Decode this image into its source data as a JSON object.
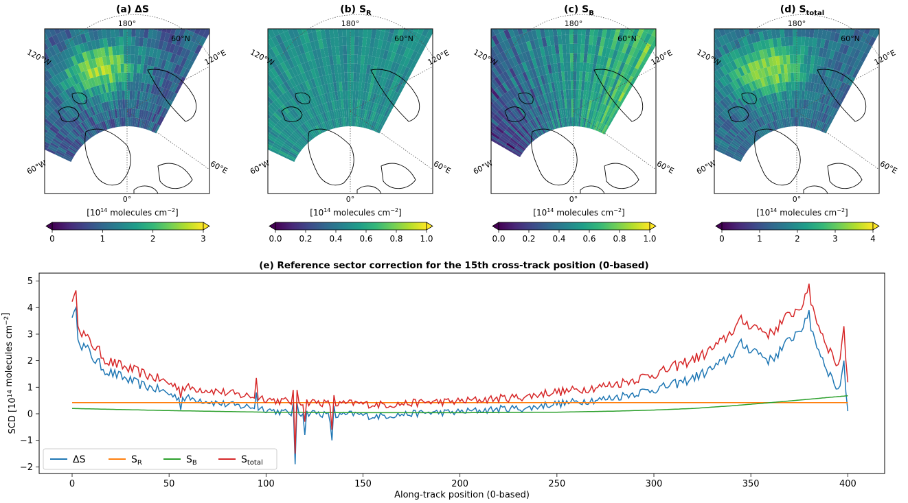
{
  "maps": [
    {
      "id": "a",
      "title_prefix": "(a) ΔS",
      "title_sub": "",
      "colorbar_label": "[10^14 molecules cm^-2]",
      "colorbar_label_main": "[10",
      "colorbar_label_exp": "14",
      "colorbar_label_rest": " molecules cm",
      "colorbar_label_exp2": "−2",
      "colorbar_label_end": "]",
      "ticks": [
        "0",
        "1",
        "2",
        "3"
      ],
      "range": [
        0,
        3
      ],
      "swath": "a"
    },
    {
      "id": "b",
      "title_prefix": "(b) S",
      "title_sub": "R",
      "colorbar_label_main": "[10",
      "colorbar_label_exp": "14",
      "colorbar_label_rest": " molecules cm",
      "colorbar_label_exp2": "−2",
      "colorbar_label_end": "]",
      "ticks": [
        "0.0",
        "0.2",
        "0.4",
        "0.6",
        "0.8",
        "1.0"
      ],
      "range": [
        0,
        1
      ],
      "swath": "b"
    },
    {
      "id": "c",
      "title_prefix": "(c) S",
      "title_sub": "B",
      "colorbar_label_main": "[10",
      "colorbar_label_exp": "14",
      "colorbar_label_rest": " molecules cm",
      "colorbar_label_exp2": "−2",
      "colorbar_label_end": "]",
      "ticks": [
        "0.0",
        "0.2",
        "0.4",
        "0.6",
        "0.8",
        "1.0"
      ],
      "range": [
        0,
        1
      ],
      "swath": "c"
    },
    {
      "id": "d",
      "title_prefix": "(d) S",
      "title_sub": "total",
      "colorbar_label_main": "[10",
      "colorbar_label_exp": "14",
      "colorbar_label_rest": " molecules cm",
      "colorbar_label_exp2": "−2",
      "colorbar_label_end": "]",
      "ticks": [
        "0",
        "1",
        "2",
        "3",
        "4"
      ],
      "range": [
        0,
        4
      ],
      "swath": "a"
    }
  ],
  "map_labels": {
    "lon_180": "180°",
    "lon_0": "0°",
    "lat_60n": "60°N",
    "lon_120w": "120°W",
    "lon_120e": "120°E",
    "lon_60w": "60°W",
    "lon_60e": "60°E"
  },
  "colors": {
    "viridis": [
      "#440154",
      "#482878",
      "#3e4989",
      "#31688e",
      "#26828e",
      "#1f9e89",
      "#35b779",
      "#6ece58",
      "#b5de2b",
      "#fde725"
    ],
    "delta_s": "#1f77b4",
    "s_r": "#ff7f0e",
    "s_b": "#2ca02c",
    "s_total": "#d62728"
  },
  "chart_data": {
    "type": "line",
    "title": "(e) Reference sector correction for the 15th cross-track position (0-based)",
    "xlabel": "Along-track position (0-based)",
    "ylabel_main": "SCD [10",
    "ylabel_exp": "14",
    "ylabel_rest": " molecules cm",
    "ylabel_exp2": "−2",
    "ylabel_end": "]",
    "xlim": [
      -17,
      419
    ],
    "ylim": [
      -2.25,
      5.3
    ],
    "xticks": [
      0,
      50,
      100,
      150,
      200,
      250,
      300,
      350,
      400
    ],
    "yticks": [
      -2,
      -1,
      0,
      1,
      2,
      3,
      4,
      5
    ],
    "legend_position": "lower-left",
    "series": [
      {
        "name": "ΔS",
        "name_main": "ΔS",
        "name_sub": "",
        "color": "#1f77b4",
        "anchors": [
          [
            0,
            3.8
          ],
          [
            2,
            3.8
          ],
          [
            3,
            3.0
          ],
          [
            5,
            2.6
          ],
          [
            8,
            2.4
          ],
          [
            12,
            2.0
          ],
          [
            18,
            1.6
          ],
          [
            25,
            1.4
          ],
          [
            35,
            1.1
          ],
          [
            45,
            0.9
          ],
          [
            55,
            0.6
          ],
          [
            65,
            0.55
          ],
          [
            75,
            0.4
          ],
          [
            85,
            0.3
          ],
          [
            95,
            0.25
          ],
          [
            105,
            0.1
          ],
          [
            115,
            0.0
          ],
          [
            125,
            0.05
          ],
          [
            135,
            -0.1
          ],
          [
            145,
            0.0
          ],
          [
            155,
            -0.1
          ],
          [
            165,
            -0.05
          ],
          [
            175,
            0.0
          ],
          [
            185,
            0.05
          ],
          [
            195,
            0.05
          ],
          [
            205,
            0.1
          ],
          [
            215,
            0.15
          ],
          [
            225,
            0.2
          ],
          [
            235,
            0.2
          ],
          [
            245,
            0.35
          ],
          [
            255,
            0.4
          ],
          [
            265,
            0.5
          ],
          [
            275,
            0.55
          ],
          [
            285,
            0.7
          ],
          [
            295,
            0.85
          ],
          [
            305,
            1.0
          ],
          [
            315,
            1.2
          ],
          [
            325,
            1.5
          ],
          [
            335,
            1.9
          ],
          [
            345,
            2.6
          ],
          [
            352,
            2.4
          ],
          [
            360,
            2.0
          ],
          [
            368,
            2.6
          ],
          [
            375,
            3.2
          ],
          [
            380,
            3.5
          ],
          [
            385,
            2.4
          ],
          [
            390,
            1.6
          ],
          [
            395,
            0.9
          ],
          [
            398,
            1.6
          ],
          [
            400,
            0.15
          ]
        ],
        "noise": 0.22,
        "spikes": [
          [
            1,
            3.85
          ],
          [
            56,
            0.15
          ],
          [
            95,
            0.8
          ],
          [
            114,
            0.4
          ],
          [
            115,
            -1.9
          ],
          [
            116,
            0.4
          ],
          [
            119,
            0.0
          ],
          [
            120,
            -0.8
          ],
          [
            133,
            -0.3
          ],
          [
            134,
            -1.0
          ],
          [
            135,
            0.3
          ],
          [
            380,
            3.9
          ],
          [
            398,
            2.0
          ]
        ]
      },
      {
        "name": "S_R",
        "name_main": "S",
        "name_sub": "R",
        "color": "#ff7f0e",
        "anchors": [
          [
            0,
            0.42
          ],
          [
            400,
            0.42
          ]
        ],
        "noise": 0.0,
        "spikes": []
      },
      {
        "name": "S_B",
        "name_main": "S",
        "name_sub": "B",
        "color": "#2ca02c",
        "anchors": [
          [
            0,
            0.2
          ],
          [
            50,
            0.12
          ],
          [
            100,
            0.06
          ],
          [
            150,
            0.04
          ],
          [
            200,
            0.04
          ],
          [
            250,
            0.06
          ],
          [
            280,
            0.1
          ],
          [
            300,
            0.14
          ],
          [
            320,
            0.2
          ],
          [
            340,
            0.3
          ],
          [
            360,
            0.42
          ],
          [
            380,
            0.55
          ],
          [
            400,
            0.68
          ]
        ],
        "noise": 0.0,
        "spikes": []
      },
      {
        "name": "S_total",
        "name_main": "S",
        "name_sub": "total",
        "color": "#d62728",
        "anchors": [
          [
            0,
            4.4
          ],
          [
            2,
            4.45
          ],
          [
            3,
            3.5
          ],
          [
            5,
            3.1
          ],
          [
            8,
            2.8
          ],
          [
            12,
            2.5
          ],
          [
            18,
            2.0
          ],
          [
            25,
            1.8
          ],
          [
            35,
            1.55
          ],
          [
            45,
            1.3
          ],
          [
            55,
            1.0
          ],
          [
            65,
            0.95
          ],
          [
            75,
            0.85
          ],
          [
            85,
            0.72
          ],
          [
            95,
            0.65
          ],
          [
            105,
            0.5
          ],
          [
            115,
            0.45
          ],
          [
            125,
            0.45
          ],
          [
            135,
            0.35
          ],
          [
            145,
            0.4
          ],
          [
            155,
            0.35
          ],
          [
            165,
            0.35
          ],
          [
            175,
            0.4
          ],
          [
            185,
            0.45
          ],
          [
            195,
            0.45
          ],
          [
            205,
            0.5
          ],
          [
            215,
            0.55
          ],
          [
            225,
            0.6
          ],
          [
            235,
            0.65
          ],
          [
            245,
            0.8
          ],
          [
            255,
            0.85
          ],
          [
            265,
            0.95
          ],
          [
            275,
            1.05
          ],
          [
            285,
            1.2
          ],
          [
            295,
            1.4
          ],
          [
            305,
            1.6
          ],
          [
            315,
            1.9
          ],
          [
            325,
            2.2
          ],
          [
            335,
            2.7
          ],
          [
            345,
            3.5
          ],
          [
            352,
            3.3
          ],
          [
            360,
            3.0
          ],
          [
            368,
            3.6
          ],
          [
            375,
            4.0
          ],
          [
            380,
            4.5
          ],
          [
            385,
            3.3
          ],
          [
            390,
            2.5
          ],
          [
            395,
            1.8
          ],
          [
            398,
            2.9
          ],
          [
            400,
            1.25
          ]
        ],
        "noise": 0.22,
        "spikes": [
          [
            1,
            4.45
          ],
          [
            56,
            0.6
          ],
          [
            95,
            1.35
          ],
          [
            114,
            0.9
          ],
          [
            115,
            -1.5
          ],
          [
            116,
            0.9
          ],
          [
            120,
            -0.3
          ],
          [
            134,
            -0.6
          ],
          [
            135,
            0.7
          ],
          [
            380,
            4.9
          ],
          [
            398,
            3.3
          ]
        ]
      }
    ]
  }
}
